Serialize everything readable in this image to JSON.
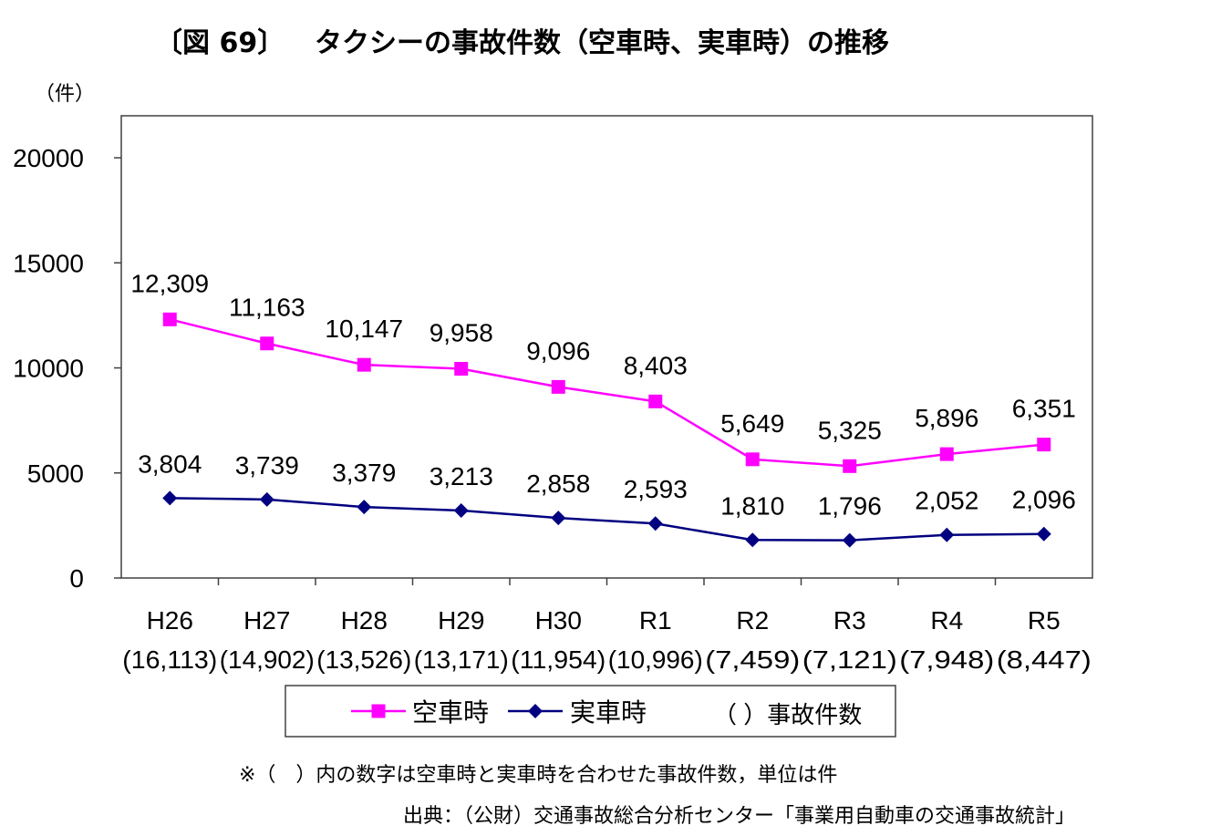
{
  "title": {
    "figure_label": "〔図 69〕",
    "text": "タクシーの事故件数（空車時、実車時）の推移"
  },
  "chart_data": {
    "type": "line",
    "unit_label": "（件）",
    "categories": [
      "H26",
      "H27",
      "H28",
      "H29",
      "H30",
      "R1",
      "R2",
      "R3",
      "R4",
      "R5"
    ],
    "totals_text": [
      "(16,113)",
      "(14,902)",
      "(13,526)",
      "(13,171)",
      "(11,954)",
      "(10,996)",
      "(7,459)",
      "(7,121)",
      "(7,948)",
      "(8,447)"
    ],
    "ylim": [
      0,
      22000
    ],
    "yticks": [
      0,
      5000,
      10000,
      15000,
      20000
    ],
    "series": [
      {
        "name": "空車時",
        "color": "#ff00ff",
        "marker": "square",
        "values": [
          12309,
          11163,
          10147,
          9958,
          9096,
          8403,
          5649,
          5325,
          5896,
          6351
        ],
        "labels": [
          "12,309",
          "11,163",
          "10,147",
          "9,958",
          "9,096",
          "8,403",
          "5,649",
          "5,325",
          "5,896",
          "6,351"
        ]
      },
      {
        "name": "実車時",
        "color": "#000080",
        "marker": "diamond",
        "values": [
          3804,
          3739,
          3379,
          3213,
          2858,
          2593,
          1810,
          1796,
          2052,
          2096
        ],
        "labels": [
          "3,804",
          "3,739",
          "3,379",
          "3,213",
          "2,858",
          "2,593",
          "1,810",
          "1,796",
          "2,052",
          "2,096"
        ]
      }
    ],
    "legend_extra": "（ ）事故件数"
  },
  "note": "※（　）内の数字は空車時と実車時を合わせた事故件数，単位は件",
  "source": "出典：（公財）交通事故総合分析センター「事業用自動車の交通事故統計」"
}
